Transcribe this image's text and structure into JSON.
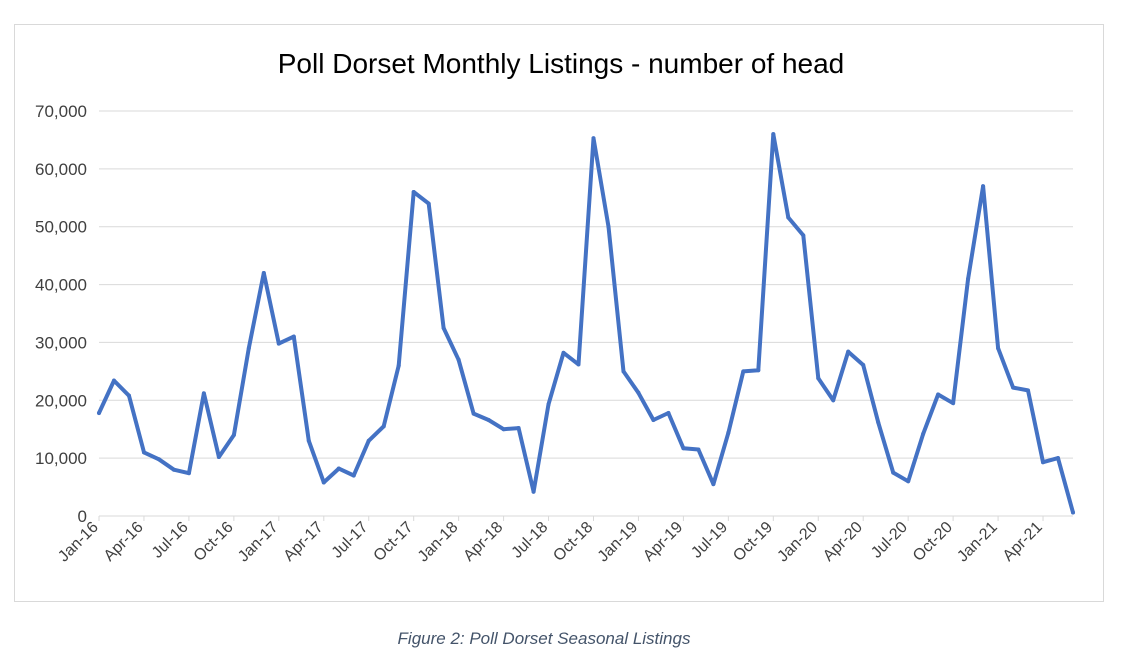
{
  "chart_data": {
    "type": "line",
    "title": "Poll Dorset Monthly Listings - number of head",
    "xlabel": "",
    "ylabel": "",
    "ylim": [
      0,
      70000
    ],
    "yticks": [
      0,
      10000,
      20000,
      30000,
      40000,
      50000,
      60000,
      70000
    ],
    "ytick_labels": [
      "0",
      "10,000",
      "20,000",
      "30,000",
      "40,000",
      "50,000",
      "60,000",
      "70,000"
    ],
    "x_tick_labels": [
      "Jan-16",
      "Apr-16",
      "Jul-16",
      "Oct-16",
      "Jan-17",
      "Apr-17",
      "Jul-17",
      "Oct-17",
      "Jan-18",
      "Apr-18",
      "Jul-18",
      "Oct-18",
      "Jan-19",
      "Apr-19",
      "Jul-19",
      "Oct-19",
      "Jan-20",
      "Apr-20",
      "Jul-20",
      "Oct-20",
      "Jan-21",
      "Apr-21"
    ],
    "grid": true,
    "legend": "none",
    "series": [
      {
        "name": "Poll Dorset listings",
        "color": "#4472c4",
        "values": [
          17800,
          23400,
          20800,
          11000,
          9800,
          8000,
          7400,
          21200,
          10200,
          14000,
          29000,
          42000,
          29800,
          31000,
          13000,
          5800,
          8200,
          7000,
          13000,
          15500,
          26000,
          56000,
          54000,
          32500,
          27000,
          17700,
          16600,
          15000,
          15200,
          4200,
          19300,
          28200,
          26200,
          65300,
          50000,
          25000,
          21300,
          16600,
          17800,
          11700,
          11500,
          5500,
          14400,
          25000,
          25200,
          66000,
          51600,
          48500,
          23800,
          20000,
          28400,
          26100,
          16200,
          7500,
          6000,
          14200,
          21000,
          19500,
          41000,
          57000,
          29000,
          22200,
          21700,
          9300,
          10000,
          600
        ]
      }
    ]
  },
  "figure_caption": "Figure 2: Poll Dorset Seasonal Listings",
  "colors": {
    "line": "#4472c4",
    "grid": "#d9d9d9",
    "axis_text": "#404040",
    "caption": "#44546a"
  }
}
